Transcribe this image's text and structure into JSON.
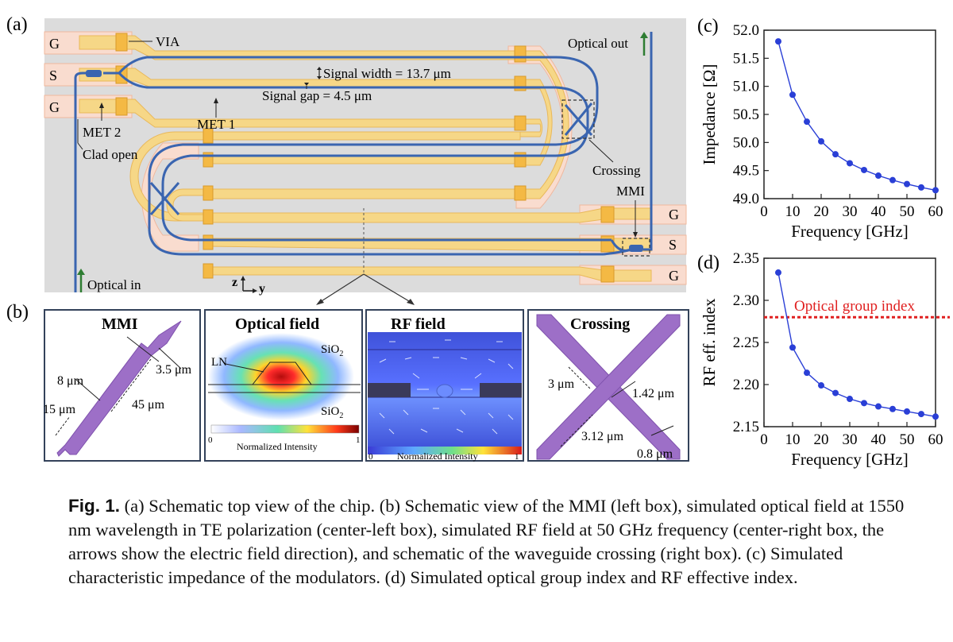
{
  "panel_labels": {
    "a": "(a)",
    "b": "(b)",
    "c": "(c)",
    "d": "(d)"
  },
  "chip": {
    "pads_left": [
      "G",
      "S",
      "G"
    ],
    "pads_right": [
      "G",
      "S",
      "G"
    ],
    "labels": {
      "via": "VIA",
      "optical_out": "Optical out",
      "signal_width": "Signal width = 13.7 μm",
      "signal_gap": "Signal gap = 4.5 μm",
      "met2": "MET 2",
      "met1": "MET 1",
      "clad_open": "Clad open",
      "crossing": "Crossing",
      "mmi": "MMI",
      "optical_in": "Optical in",
      "axis_z": "z",
      "axis_y": "y"
    },
    "colors": {
      "background": "#dcdcdc",
      "metal": "#f6d787",
      "metal_edge": "#e9b85a",
      "clad": "#f9dccf",
      "via": "#f4b944",
      "waveguide": "#3a65b0",
      "arrow": "#2e7d32"
    }
  },
  "insets": {
    "mmi": {
      "title": "MMI",
      "dims": [
        "3.5 μm",
        "8 μm",
        "45 μm",
        "15 μm"
      ]
    },
    "optical": {
      "title": "Optical field",
      "sio2_top": "SiO",
      "sio2_bottom": "SiO",
      "sub": "2",
      "ln": "LN",
      "cbar_label": "Normalized Intensity",
      "cbar_min": "0",
      "cbar_max": "1"
    },
    "rf": {
      "title": "RF field",
      "cbar_label": "Normalized Intensity",
      "cbar_min": "0",
      "cbar_max": "1"
    },
    "crossing": {
      "title": "Crossing",
      "dims": [
        "3 μm",
        "1.42 μm",
        "3.12 μm",
        "0.8 μm"
      ]
    }
  },
  "chart_data": [
    {
      "type": "line",
      "panel": "(c)",
      "xlabel": "Frequency [GHz]",
      "ylabel": "Impedance [Ω]",
      "xlim": [
        0,
        60
      ],
      "ylim": [
        49.0,
        52.0
      ],
      "xticks": [
        "0",
        "10",
        "20",
        "30",
        "40",
        "50",
        "60"
      ],
      "yticks": [
        "49.0",
        "49.5",
        "50.0",
        "50.5",
        "51.0",
        "51.5",
        "52.0"
      ],
      "series": [
        {
          "x": [
            5,
            10,
            15,
            20,
            25,
            30,
            35,
            40,
            45,
            50,
            55,
            60
          ],
          "y": [
            51.8,
            50.85,
            50.37,
            50.02,
            49.79,
            49.63,
            49.51,
            49.41,
            49.33,
            49.26,
            49.2,
            49.15
          ],
          "color": "#2a3fd6"
        }
      ]
    },
    {
      "type": "line",
      "panel": "(d)",
      "xlabel": "Frequency [GHz]",
      "ylabel": "RF eff. index",
      "xlim": [
        0,
        60
      ],
      "ylim": [
        2.15,
        2.35
      ],
      "xticks": [
        "0",
        "10",
        "20",
        "30",
        "40",
        "50",
        "60"
      ],
      "yticks": [
        "2.15",
        "2.20",
        "2.25",
        "2.30",
        "2.35"
      ],
      "reference_line": {
        "label": "Optical group index",
        "y": 2.28,
        "color": "#e02020"
      },
      "series": [
        {
          "x": [
            5,
            10,
            15,
            20,
            25,
            30,
            35,
            40,
            45,
            50,
            55,
            60
          ],
          "y": [
            2.333,
            2.244,
            2.214,
            2.199,
            2.19,
            2.183,
            2.178,
            2.174,
            2.171,
            2.168,
            2.165,
            2.162
          ],
          "color": "#2a3fd6"
        }
      ]
    }
  ],
  "caption": {
    "fig_label": "Fig. 1.",
    "text": "(a) Schematic top view of the chip.  (b) Schematic view of the MMI (left box), simulated optical field at 1550 nm wavelength in TE polarization (center-left box), simulated RF field at 50 GHz frequency (center-right box, the arrows show the electric field direction), and schematic of the waveguide crossing (right box).  (c) Simulated characteristic impedance of the modulators. (d) Simulated optical group index and RF effective index."
  }
}
